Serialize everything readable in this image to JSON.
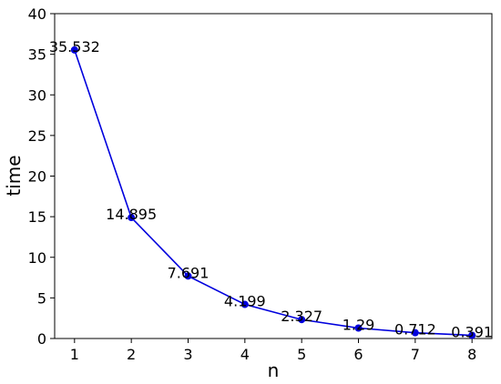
{
  "chart_data": {
    "type": "line",
    "xlabel": "n",
    "ylabel": "time",
    "x": [
      1,
      2,
      3,
      4,
      5,
      6,
      7,
      8
    ],
    "series": [
      {
        "color": "#0000dd",
        "values": [
          35.532,
          14.895,
          7.691,
          4.199,
          2.327,
          1.29,
          0.712,
          0.391
        ]
      }
    ],
    "xlim": [
      0.65,
      8.35
    ],
    "xticks": [
      1,
      2,
      3,
      4,
      5,
      6,
      7,
      8
    ],
    "ylim": [
      0,
      40
    ],
    "yticks": [
      0,
      5,
      10,
      15,
      20,
      25,
      30,
      35,
      40
    ]
  }
}
